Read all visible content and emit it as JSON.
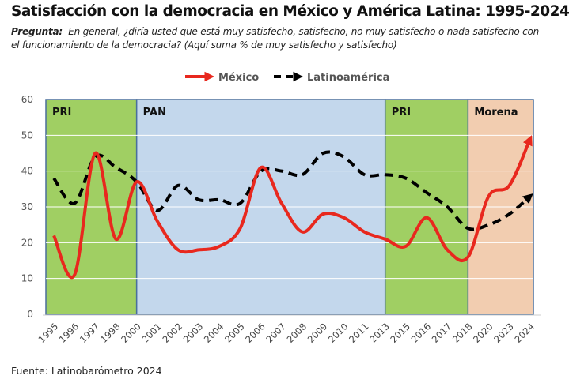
{
  "chart_data": {
    "type": "line",
    "title": "Satisfacción con la democracia en México y América Latina: 1995-2024",
    "question_label": "Pregunta:",
    "question": "En general, ¿diría usted que está muy satisfecho, satisfecho, no muy satisfecho o nada satisfecho con el funcionamiento de la democracia? (Aquí suma % de muy satisfecho y satisfecho)",
    "source": "Fuente: Latinobarómetro 2024",
    "categories": [
      "1995",
      "1996",
      "1997",
      "1998",
      "2000",
      "2001",
      "2002",
      "2003",
      "2004",
      "2005",
      "2006",
      "2007",
      "2008",
      "2009",
      "2010",
      "2011",
      "2013",
      "2015",
      "2016",
      "2017",
      "2018",
      "2020",
      "2023",
      "2024"
    ],
    "ylim": [
      0,
      60
    ],
    "yticks": [
      "0",
      "10",
      "20",
      "30",
      "40",
      "50",
      "60"
    ],
    "grid": true,
    "legend_position": "top",
    "series": [
      {
        "name": "México",
        "color": "#e8281e",
        "style": "solid",
        "values": [
          22,
          11,
          45,
          21,
          37,
          26,
          18,
          18,
          19,
          24,
          41,
          31,
          23,
          28,
          27,
          23,
          21,
          19,
          27,
          18,
          16,
          33,
          36,
          49
        ]
      },
      {
        "name": "Latinoamérica",
        "color": "#000000",
        "style": "dashed",
        "values": [
          38,
          31,
          44,
          41,
          37,
          29,
          36,
          32,
          32,
          31,
          40,
          40,
          39,
          45,
          44,
          39,
          39,
          38,
          34,
          30,
          24,
          25,
          28,
          33
        ]
      }
    ],
    "periods": [
      {
        "label": "PRI",
        "from": "1995",
        "to": "2000",
        "color": "#a0cf63"
      },
      {
        "label": "PAN",
        "from": "2000",
        "to": "2013",
        "color": "#c3d7ec"
      },
      {
        "label": "PRI",
        "from": "2013",
        "to": "2018",
        "color": "#a0cf63"
      },
      {
        "label": "Morena",
        "from": "2018",
        "to": "2024",
        "color": "#f2cdb0"
      }
    ]
  }
}
